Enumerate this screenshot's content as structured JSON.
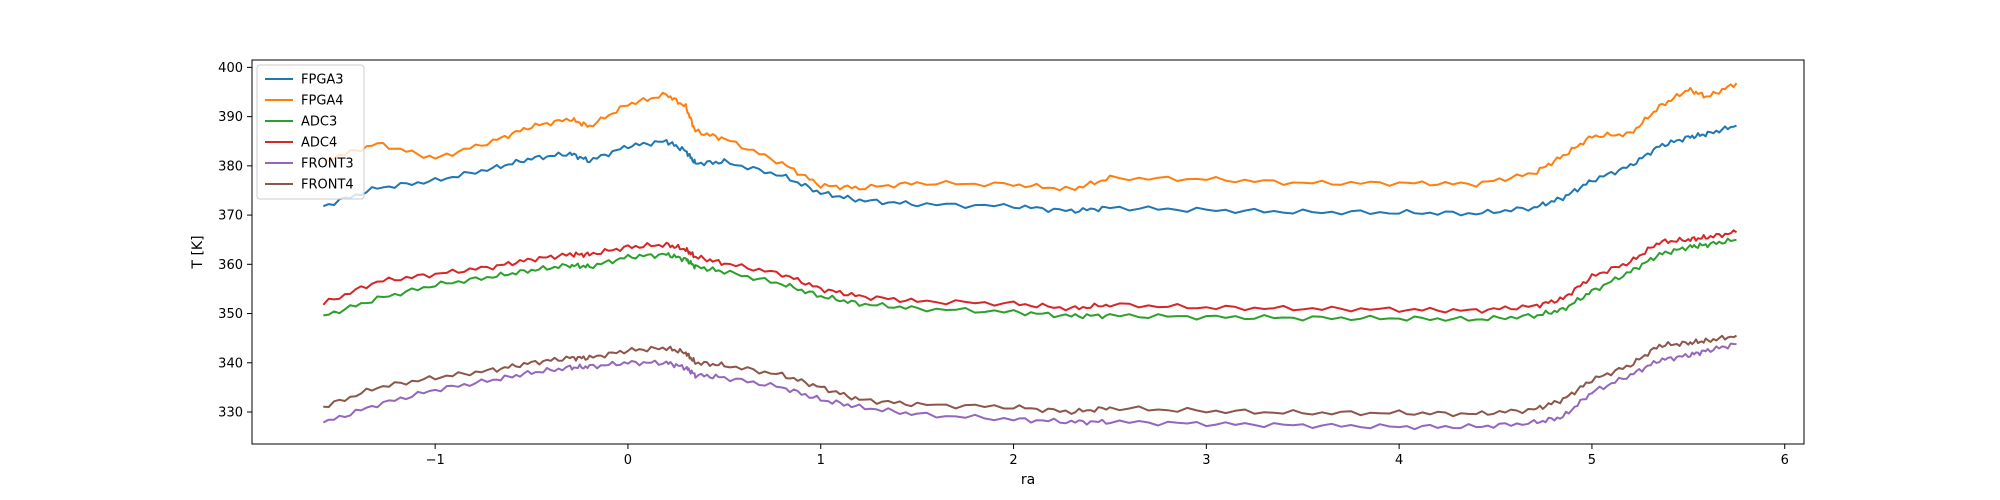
{
  "chart_data": {
    "type": "line",
    "title": "",
    "xlabel": "ra",
    "ylabel": "T [K]",
    "xlim": [
      -1.95,
      6.1
    ],
    "ylim": [
      323.5,
      401.5
    ],
    "xticks": [
      -1,
      0,
      1,
      2,
      3,
      4,
      5,
      6
    ],
    "xtick_labels": [
      "−1",
      "0",
      "1",
      "2",
      "3",
      "4",
      "5",
      "6"
    ],
    "yticks": [
      330,
      340,
      350,
      360,
      370,
      380,
      390,
      400
    ],
    "ytick_labels": [
      "330",
      "340",
      "350",
      "360",
      "370",
      "380",
      "390",
      "400"
    ],
    "grid": false,
    "legend_position": "upper-left",
    "x": [
      -1.58,
      -1.3,
      -1.0,
      -0.7,
      -0.5,
      -0.3,
      -0.2,
      0.0,
      0.2,
      0.3,
      0.35,
      0.5,
      0.8,
      1.0,
      1.2,
      1.5,
      2.0,
      2.3,
      2.5,
      3.0,
      3.5,
      4.0,
      4.4,
      4.7,
      4.85,
      5.0,
      5.2,
      5.35,
      5.5,
      5.6,
      5.75
    ],
    "series": [
      {
        "name": "FPGA3",
        "color": "#1f77b4",
        "values": [
          371.8,
          375.5,
          377.0,
          379.5,
          381.5,
          382.5,
          381.0,
          384.0,
          385.0,
          383.0,
          380.5,
          380.8,
          378.0,
          374.5,
          373.0,
          372.2,
          371.8,
          370.8,
          371.5,
          371.0,
          370.6,
          370.5,
          370.3,
          371.5,
          373.5,
          377.0,
          380.0,
          384.0,
          385.8,
          386.5,
          388.2
        ]
      },
      {
        "name": "FPGA4",
        "color": "#ff7f0e",
        "values": [
          381.0,
          384.5,
          381.5,
          385.0,
          388.0,
          389.5,
          388.0,
          392.5,
          394.5,
          392.0,
          387.0,
          385.5,
          380.5,
          376.0,
          375.5,
          376.5,
          376.2,
          375.2,
          377.5,
          377.3,
          376.5,
          376.5,
          376.3,
          378.5,
          382.0,
          386.0,
          386.5,
          392.0,
          395.5,
          394.0,
          396.8
        ]
      },
      {
        "name": "ADC3",
        "color": "#2ca02c",
        "values": [
          349.5,
          353.0,
          355.8,
          357.5,
          358.8,
          359.8,
          359.5,
          361.5,
          362.0,
          361.0,
          359.5,
          358.5,
          356.0,
          353.5,
          352.0,
          351.0,
          350.3,
          349.5,
          349.6,
          349.3,
          349.1,
          349.0,
          348.8,
          349.5,
          350.8,
          354.5,
          358.5,
          362.0,
          363.5,
          364.0,
          365.0
        ]
      },
      {
        "name": "ADC4",
        "color": "#d62728",
        "values": [
          352.0,
          356.5,
          358.0,
          359.5,
          361.0,
          362.0,
          362.0,
          363.5,
          364.0,
          363.0,
          361.5,
          360.2,
          358.0,
          355.0,
          353.5,
          352.5,
          352.0,
          351.0,
          351.8,
          351.2,
          351.0,
          350.8,
          350.6,
          351.5,
          353.0,
          357.5,
          360.5,
          364.5,
          365.0,
          365.5,
          366.5
        ]
      },
      {
        "name": "FRONT3",
        "color": "#9467bd",
        "values": [
          327.8,
          331.5,
          334.5,
          336.5,
          338.0,
          339.0,
          339.2,
          340.0,
          340.0,
          339.0,
          337.5,
          337.0,
          335.0,
          332.5,
          331.0,
          329.5,
          328.5,
          328.0,
          328.0,
          327.6,
          327.3,
          327.0,
          327.0,
          327.8,
          329.0,
          334.0,
          337.5,
          340.5,
          341.5,
          342.5,
          343.8
        ]
      },
      {
        "name": "FRONT4",
        "color": "#8c564b",
        "values": [
          331.0,
          335.0,
          337.0,
          338.5,
          340.0,
          341.0,
          341.0,
          342.5,
          343.0,
          342.0,
          340.0,
          339.5,
          337.5,
          335.0,
          332.5,
          331.5,
          331.0,
          330.0,
          330.8,
          330.2,
          329.8,
          329.8,
          329.6,
          330.5,
          332.5,
          336.5,
          339.5,
          343.5,
          344.0,
          344.5,
          345.5
        ]
      }
    ]
  }
}
